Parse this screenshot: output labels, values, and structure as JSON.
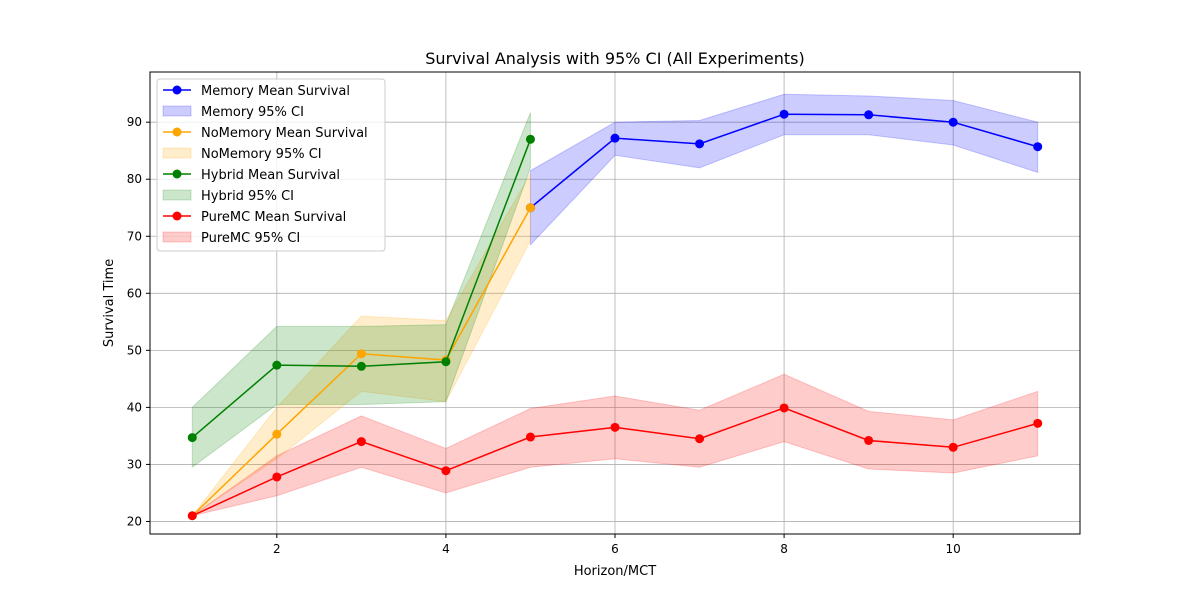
{
  "chart_data": {
    "type": "line",
    "title": "Survival Analysis with 95% CI (All Experiments)",
    "xlabel": "Horizon/MCT",
    "ylabel": "Survival Time",
    "xlim": [
      0.5,
      11.5
    ],
    "ylim": [
      17.8,
      98.8
    ],
    "xticks": [
      2,
      4,
      6,
      8,
      10
    ],
    "yticks": [
      20,
      30,
      40,
      50,
      60,
      70,
      80,
      90
    ],
    "grid": true,
    "legend_position": "top-left",
    "series": [
      {
        "name": "Memory Mean Survival",
        "ci_name": "Memory 95% CI",
        "color": "#0000ff",
        "x": [
          5,
          6,
          7,
          8,
          9,
          10,
          11
        ],
        "y": [
          75.0,
          87.2,
          86.2,
          91.4,
          91.3,
          90.0,
          85.7
        ],
        "ci_low": [
          68.5,
          84.2,
          82.0,
          87.8,
          87.8,
          86.0,
          81.2
        ],
        "ci_high": [
          81.5,
          90.0,
          90.3,
          94.9,
          94.6,
          93.8,
          90.0
        ]
      },
      {
        "name": "NoMemory Mean Survival",
        "ci_name": "NoMemory 95% CI",
        "color": "#ffa500",
        "x": [
          1,
          2,
          3,
          4,
          5
        ],
        "y": [
          21.0,
          35.3,
          49.4,
          48.3,
          75.0
        ],
        "ci_low": [
          21.0,
          31.0,
          42.8,
          41.0,
          69.2
        ],
        "ci_high": [
          21.0,
          40.0,
          56.0,
          55.2,
          81.0
        ]
      },
      {
        "name": "Hybrid Mean Survival",
        "ci_name": "Hybrid 95% CI",
        "color": "#008000",
        "x": [
          1,
          2,
          3,
          4,
          5
        ],
        "y": [
          34.7,
          47.4,
          47.2,
          48.0,
          87.0
        ],
        "ci_low": [
          29.5,
          40.5,
          40.5,
          41.0,
          82.0
        ],
        "ci_high": [
          40.0,
          54.2,
          54.2,
          54.5,
          91.7
        ]
      },
      {
        "name": "PureMC Mean Survival",
        "ci_name": "PureMC 95% CI",
        "color": "#ff0000",
        "x": [
          1,
          2,
          3,
          4,
          5,
          6,
          7,
          8,
          9,
          10,
          11
        ],
        "y": [
          21.0,
          27.8,
          34.0,
          28.9,
          34.8,
          36.5,
          34.5,
          39.9,
          34.2,
          33.0,
          37.2
        ],
        "ci_low": [
          21.0,
          24.5,
          29.5,
          25.0,
          29.5,
          31.0,
          29.5,
          34.0,
          29.2,
          28.5,
          31.5
        ],
        "ci_high": [
          21.0,
          31.5,
          38.5,
          32.8,
          39.8,
          42.0,
          39.5,
          45.8,
          39.3,
          37.8,
          42.8
        ]
      }
    ]
  }
}
